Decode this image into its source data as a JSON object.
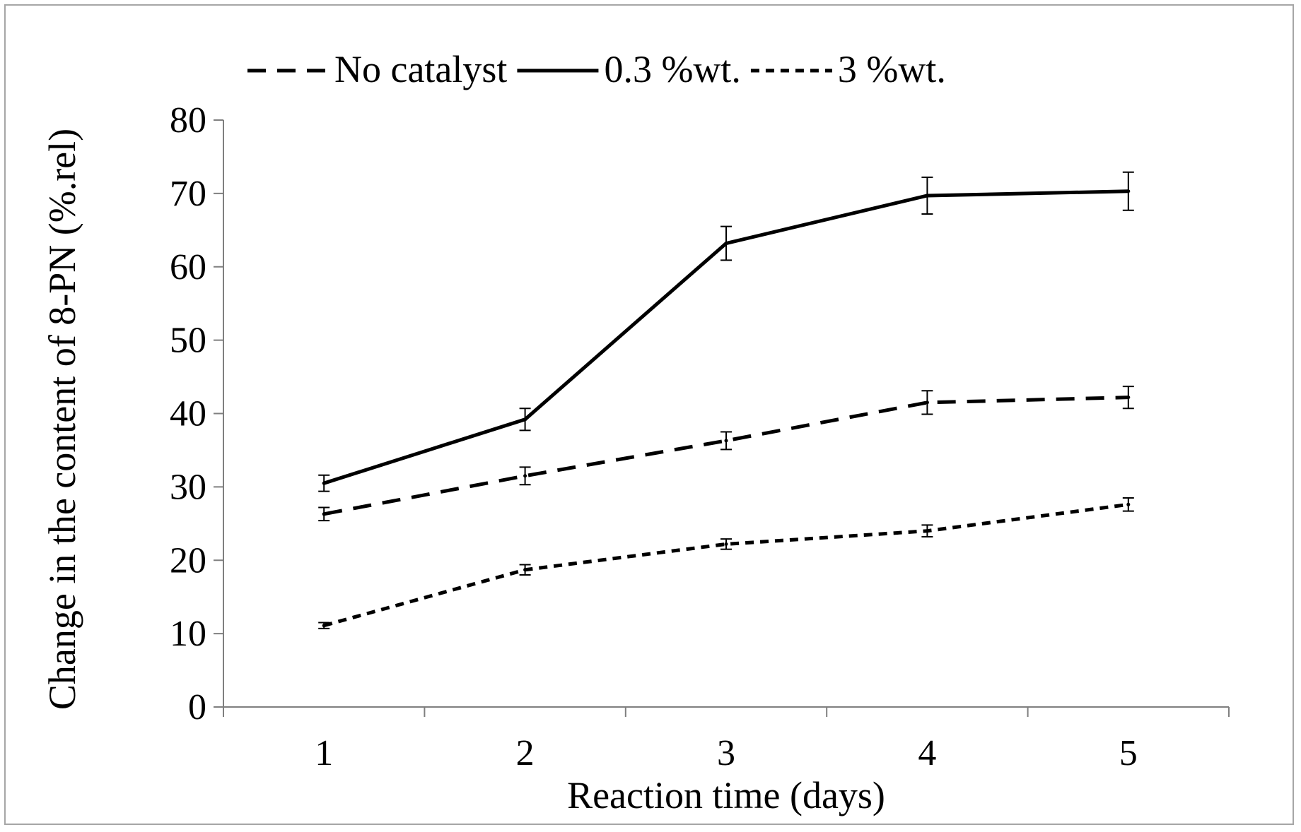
{
  "chart_data": {
    "type": "line",
    "title": "",
    "xlabel": "Reaction time (days)",
    "ylabel": "Change in the content of 8-PN (%.rel)",
    "categories": [
      "1",
      "2",
      "3",
      "4",
      "5"
    ],
    "ylim": [
      0,
      80
    ],
    "yticks": [
      "0",
      "10",
      "20",
      "30",
      "40",
      "50",
      "60",
      "70",
      "80"
    ],
    "grid": false,
    "legend_position": "top",
    "series": [
      {
        "name": "No catalyst",
        "style": "dashed",
        "color": "#000000",
        "values": [
          26.3,
          31.5,
          36.3,
          41.5,
          42.2
        ],
        "errors": [
          0.9,
          1.2,
          1.2,
          1.6,
          1.5
        ]
      },
      {
        "name": "0.3 %wt.",
        "style": "solid",
        "color": "#000000",
        "values": [
          30.5,
          39.2,
          63.2,
          69.7,
          70.3
        ],
        "errors": [
          1.1,
          1.5,
          2.3,
          2.5,
          2.6
        ]
      },
      {
        "name": "3 %wt.",
        "style": "dotted",
        "color": "#000000",
        "values": [
          11.1,
          18.7,
          22.2,
          24.0,
          27.6
        ],
        "errors": [
          0.4,
          0.7,
          0.7,
          0.8,
          0.9
        ]
      }
    ]
  }
}
